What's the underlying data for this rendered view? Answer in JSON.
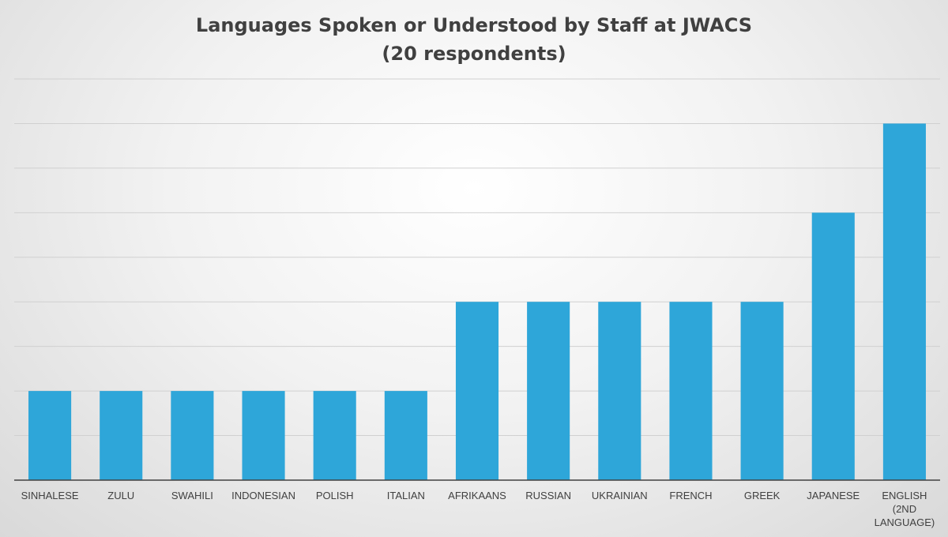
{
  "chart_data": {
    "type": "bar",
    "title": "Languages Spoken or Understood by Staff at JWACS",
    "subtitle": "(20 respondents)",
    "xlabel": "",
    "ylabel": "",
    "categories": [
      "SINHALESE",
      "ZULU",
      "SWAHILI",
      "INDONESIAN",
      "POLISH",
      "ITALIAN",
      "AFRIKAANS",
      "RUSSIAN",
      "UKRAINIAN",
      "FRENCH",
      "GREEK",
      "JAPANESE",
      "ENGLISH (2ND LANGUAGE)"
    ],
    "values": [
      2,
      2,
      2,
      2,
      2,
      2,
      4,
      4,
      4,
      4,
      4,
      6,
      8
    ],
    "ylim": [
      0,
      9
    ],
    "grid": true,
    "bar_color": "#2ea6d9",
    "gridline_color": "#d0d0d0",
    "axis_color": "#404040"
  }
}
